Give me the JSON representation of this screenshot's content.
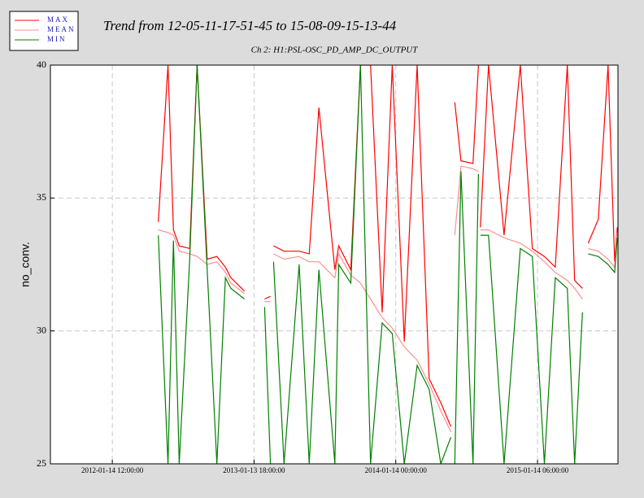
{
  "chart_data": {
    "type": "line",
    "title": "Trend from 12-05-11-17-51-45 to 15-08-09-15-13-44",
    "subtitle": "Ch 2: H1:PSL-OSC_PD_AMP_DC_OUTPUT",
    "y_label": "no_conv.",
    "grid": true,
    "legend": "top-left",
    "xlim": [
      "2011-08-08 00:00:00",
      "2015-08-09 15:13:44"
    ],
    "xticks": [
      "2012-01-14 12:00:00",
      "2013-01-13 18:00:00",
      "2014-01-14 00:00:00",
      "2015-01-14 06:00:00"
    ],
    "ylim": [
      25,
      40
    ],
    "yticks": [
      25,
      30,
      35,
      40
    ],
    "x": [
      "2012-05-12 00:00:00",
      "2012-06-06 00:00:00",
      "2012-06-20 00:00:00",
      "2012-07-05 00:00:00",
      "2012-08-01 00:00:00",
      "2012-08-20 00:00:00",
      "2012-09-15 00:00:00",
      "2012-10-10 00:00:00",
      "2012-11-01 00:00:00",
      "2012-11-15 00:00:00",
      "2012-12-20 00:00:00",
      "2013-01-15 00:00:00",
      "2013-02-10 00:00:00",
      "2013-02-25 00:00:00",
      "2013-03-01 00:00:00",
      "2013-03-05 00:00:00",
      "2013-04-01 00:00:00",
      "2013-05-10 00:00:00",
      "2013-06-05 00:00:00",
      "2013-06-30 00:00:00",
      "2013-08-10 00:00:00",
      "2013-08-20 00:00:00",
      "2013-09-20 00:00:00",
      "2013-10-15 00:00:00",
      "2013-11-10 00:00:00",
      "2013-12-10 00:00:00",
      "2014-01-05 00:00:00",
      "2014-02-05 00:00:00",
      "2014-03-10 00:00:00",
      "2014-04-10 00:00:00",
      "2014-05-10 00:00:00",
      "2014-06-05 00:00:00",
      "2014-06-10 00:00:00",
      "2014-06-15 00:00:00",
      "2014-07-01 00:00:00",
      "2014-08-01 00:00:00",
      "2014-08-15 00:00:00",
      "2014-08-17 00:00:00",
      "2014-08-20 00:00:00",
      "2014-09-10 00:00:00",
      "2014-10-20 00:00:00",
      "2014-12-01 00:00:00",
      "2015-01-01 00:00:00",
      "2015-02-01 00:00:00",
      "2015-03-01 00:00:00",
      "2015-04-01 00:00:00",
      "2015-04-20 00:00:00",
      "2015-05-10 00:00:00",
      "2015-05-18 00:00:00",
      "2015-05-25 00:00:00",
      "2015-06-20 00:00:00",
      "2015-07-15 00:00:00",
      "2015-08-01 00:00:00",
      "2015-08-08 00:00:00"
    ],
    "series": [
      {
        "name": "MAX",
        "color": "#ff0000",
        "values": [
          34.1,
          40,
          33.8,
          33.2,
          33.1,
          40,
          32.7,
          32.8,
          32.4,
          32.0,
          31.5,
          null,
          31.2,
          31.3,
          null,
          33.2,
          33.0,
          33.0,
          32.9,
          38.4,
          32.3,
          33.2,
          32.3,
          40,
          40,
          30.7,
          40,
          29.6,
          40,
          28.2,
          27.3,
          26.4,
          null,
          38.6,
          36.4,
          36.3,
          40,
          null,
          33.9,
          40,
          33.6,
          40,
          33.1,
          32.8,
          32.4,
          40,
          31.9,
          31.6,
          null,
          33.3,
          34.2,
          40,
          32.6,
          33.9
        ]
      },
      {
        "name": "MEAN",
        "color": "#ff9090",
        "values": [
          33.8,
          33.7,
          33.6,
          33.0,
          32.9,
          32.8,
          32.5,
          32.6,
          32.2,
          31.8,
          31.4,
          null,
          31.1,
          31.1,
          null,
          32.9,
          32.7,
          32.8,
          32.6,
          32.6,
          32.0,
          32.9,
          32.1,
          31.8,
          31.2,
          30.5,
          30.1,
          29.4,
          28.9,
          28.0,
          27.0,
          26.2,
          null,
          33.6,
          36.2,
          36.1,
          36.0,
          null,
          33.8,
          33.8,
          33.5,
          33.3,
          33.0,
          32.6,
          32.2,
          31.9,
          31.6,
          31.2,
          null,
          33.1,
          33.0,
          32.7,
          32.4,
          33.7
        ]
      },
      {
        "name": "MIN",
        "color": "#008000",
        "values": [
          33.6,
          25,
          33.4,
          25,
          32.7,
          40,
          32.3,
          25,
          32.0,
          31.6,
          31.2,
          null,
          30.9,
          25,
          null,
          32.6,
          25,
          32.5,
          25,
          32.3,
          25,
          32.5,
          31.8,
          40,
          25,
          30.3,
          29.9,
          25,
          28.7,
          27.8,
          25,
          26.0,
          null,
          25,
          36.0,
          25,
          35.9,
          null,
          33.6,
          33.6,
          25,
          33.1,
          32.8,
          25,
          32.0,
          31.6,
          25,
          30.7,
          null,
          32.9,
          32.8,
          32.5,
          32.2,
          33.5
        ]
      }
    ]
  }
}
